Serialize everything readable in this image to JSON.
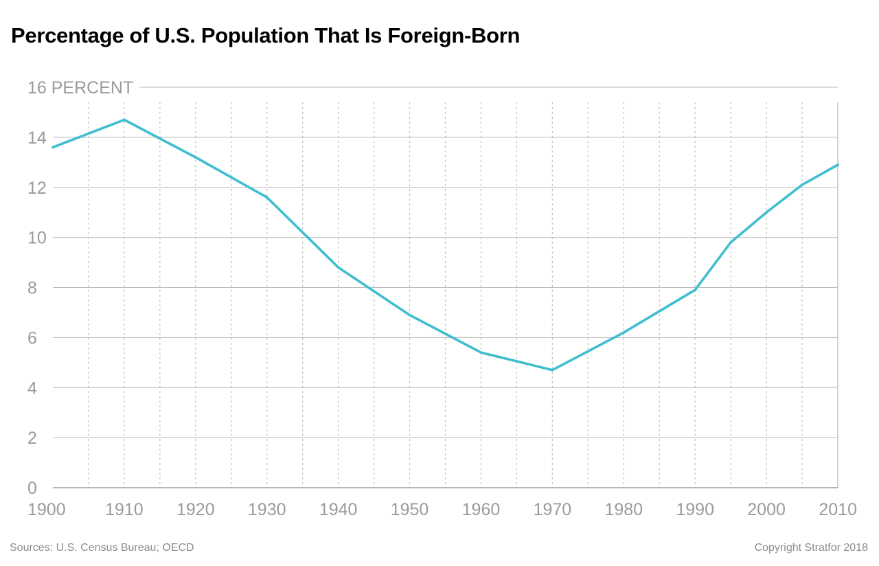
{
  "chart_data": {
    "type": "line",
    "title": "Percentage of U.S. Population That Is Foreign-Born",
    "ylabel_unit": "PERCENT",
    "xlim": [
      1900,
      2010
    ],
    "ylim": [
      0,
      16
    ],
    "x_ticks": [
      1900,
      1910,
      1920,
      1930,
      1940,
      1950,
      1960,
      1970,
      1980,
      1990,
      2000,
      2010
    ],
    "y_ticks": [
      0,
      2,
      4,
      6,
      8,
      10,
      12,
      14,
      16
    ],
    "top_tick_label": "16 PERCENT",
    "grid": {
      "horizontal": "solid",
      "vertical": "dotted",
      "vertical_every_years": 5
    },
    "series": [
      {
        "color": "#3fbecf",
        "x": [
          1900,
          1910,
          1920,
          1930,
          1940,
          1950,
          1960,
          1970,
          1980,
          1990,
          1995,
          2000,
          2005,
          2010
        ],
        "values": [
          13.6,
          14.7,
          13.2,
          11.6,
          8.8,
          6.9,
          5.4,
          4.7,
          6.2,
          7.9,
          9.8,
          11.0,
          12.1,
          12.9
        ]
      }
    ]
  },
  "footer": {
    "source": "Sources: U.S. Census Bureau; OECD",
    "copyright": "Copyright Stratfor 2018"
  }
}
